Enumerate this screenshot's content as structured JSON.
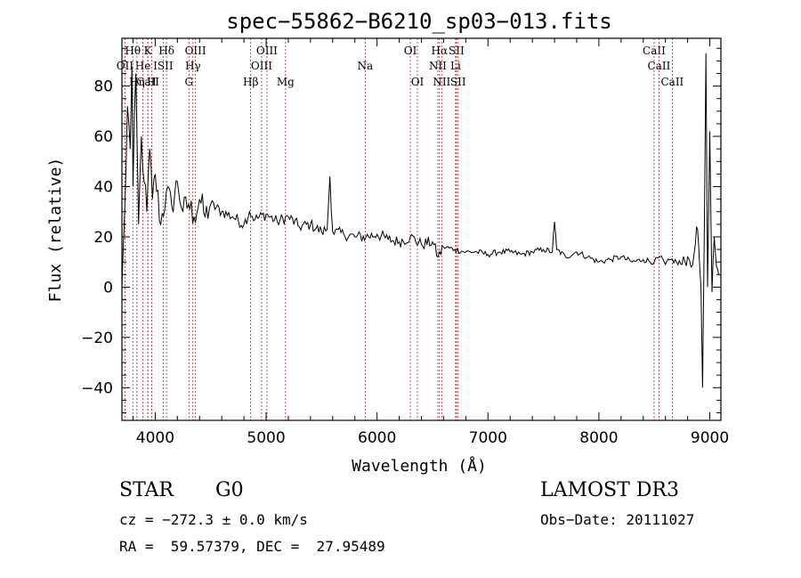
{
  "chart_data": {
    "type": "line",
    "title": "spec−55862−B6210_sp03−013.fits",
    "xlabel": "Wavelength (Å)",
    "ylabel": "Flux (relative)",
    "xlim": [
      3700,
      9100
    ],
    "ylim": [
      -53,
      99
    ],
    "xticks": [
      4000,
      5000,
      6000,
      7000,
      8000,
      9000
    ],
    "yticks": [
      -40,
      -20,
      0,
      20,
      40,
      60,
      80
    ],
    "line_color": "#000000",
    "marker_color": "#b22222",
    "spectral_lines": [
      {
        "name": "CaII",
        "wl": 3934,
        "row": 3
      },
      {
        "name": "Hθ",
        "wl": 3798,
        "row": 1
      },
      {
        "name": "K",
        "wl": 3934,
        "row": 1
      },
      {
        "name": "Hδ",
        "wl": 4102,
        "row": 1
      },
      {
        "name": "OIII",
        "wl": 4363,
        "row": 1
      },
      {
        "name": "OIII",
        "wl": 5007,
        "row": 1
      },
      {
        "name": "OI",
        "wl": 6300,
        "row": 1
      },
      {
        "name": "Hα",
        "wl": 6563,
        "row": 1
      },
      {
        "name": "SII",
        "wl": 6716,
        "row": 1
      },
      {
        "name": "CaII",
        "wl": 8498,
        "row": 1
      },
      {
        "name": "OII",
        "wl": 3727,
        "row": 2
      },
      {
        "name": "He",
        "wl": 3889,
        "row": 2
      },
      {
        "name": "ISII",
        "wl": 4072,
        "row": 2
      },
      {
        "name": "Hγ",
        "wl": 4340,
        "row": 2
      },
      {
        "name": "OIII",
        "wl": 4959,
        "row": 2
      },
      {
        "name": "Na",
        "wl": 5893,
        "row": 2
      },
      {
        "name": "NII",
        "wl": 6548,
        "row": 2
      },
      {
        "name": "Li",
        "wl": 6708,
        "row": 2
      },
      {
        "name": "CaII",
        "wl": 8542,
        "row": 2
      },
      {
        "name": "Hη",
        "wl": 3835,
        "row": 3
      },
      {
        "name": "H",
        "wl": 3969,
        "row": 3
      },
      {
        "name": "G",
        "wl": 4304,
        "row": 3
      },
      {
        "name": "Hβ",
        "wl": 4861,
        "row": 3
      },
      {
        "name": "Mg",
        "wl": 5175,
        "row": 3
      },
      {
        "name": "OI",
        "wl": 6364,
        "row": 3
      },
      {
        "name": "NII",
        "wl": 6583,
        "row": 3
      },
      {
        "name": "SII",
        "wl": 6731,
        "row": 3
      },
      {
        "name": "CaII",
        "wl": 8662,
        "row": 3
      }
    ],
    "series": [
      {
        "name": "spectrum",
        "x": [
          3700,
          3725,
          3750,
          3775,
          3790,
          3800,
          3825,
          3850,
          3875,
          3900,
          3925,
          3950,
          3975,
          4000,
          4050,
          4100,
          4150,
          4200,
          4250,
          4300,
          4350,
          4400,
          4450,
          4500,
          4600,
          4700,
          4800,
          4850,
          4900,
          5000,
          5100,
          5200,
          5300,
          5400,
          5500,
          5550,
          5575,
          5600,
          5700,
          5800,
          5900,
          6000,
          6100,
          6200,
          6300,
          6400,
          6500,
          6550,
          6600,
          6700,
          6800,
          6900,
          7000,
          7100,
          7200,
          7300,
          7400,
          7500,
          7580,
          7600,
          7620,
          7700,
          7800,
          7900,
          8000,
          8100,
          8200,
          8300,
          8400,
          8500,
          8550,
          8600,
          8650,
          8700,
          8750,
          8800,
          8830,
          8860,
          8880,
          8900,
          8920,
          8935,
          8950,
          8965,
          8980,
          9000,
          9020,
          9040,
          9060,
          9080
        ],
        "y": [
          0,
          30,
          72,
          55,
          88,
          40,
          85,
          25,
          60,
          42,
          30,
          55,
          35,
          45,
          25,
          38,
          32,
          42,
          30,
          33,
          28,
          35,
          28,
          33,
          30,
          28,
          25,
          30,
          27,
          29,
          26,
          28,
          24,
          25,
          22,
          23,
          44,
          22,
          21,
          20,
          20,
          21,
          19,
          18,
          20,
          17,
          18,
          12,
          16,
          15,
          14,
          14,
          13,
          14,
          14,
          13,
          14,
          15,
          14,
          26,
          15,
          12,
          14,
          12,
          10,
          11,
          12,
          10,
          11,
          10,
          12,
          9,
          11,
          10,
          9,
          12,
          8,
          14,
          24,
          16,
          0,
          -40,
          20,
          93,
          0,
          62,
          -2,
          20,
          8,
          5
        ]
      }
    ]
  },
  "info": {
    "object_class": "STAR",
    "subclass": "G0",
    "survey": "LAMOST DR3",
    "cz": "cz = −272.3 ± 0.0 km/s",
    "obs_date": "Obs−Date: 20111027",
    "coords": "RA =  59.57379, DEC =  27.95489"
  }
}
